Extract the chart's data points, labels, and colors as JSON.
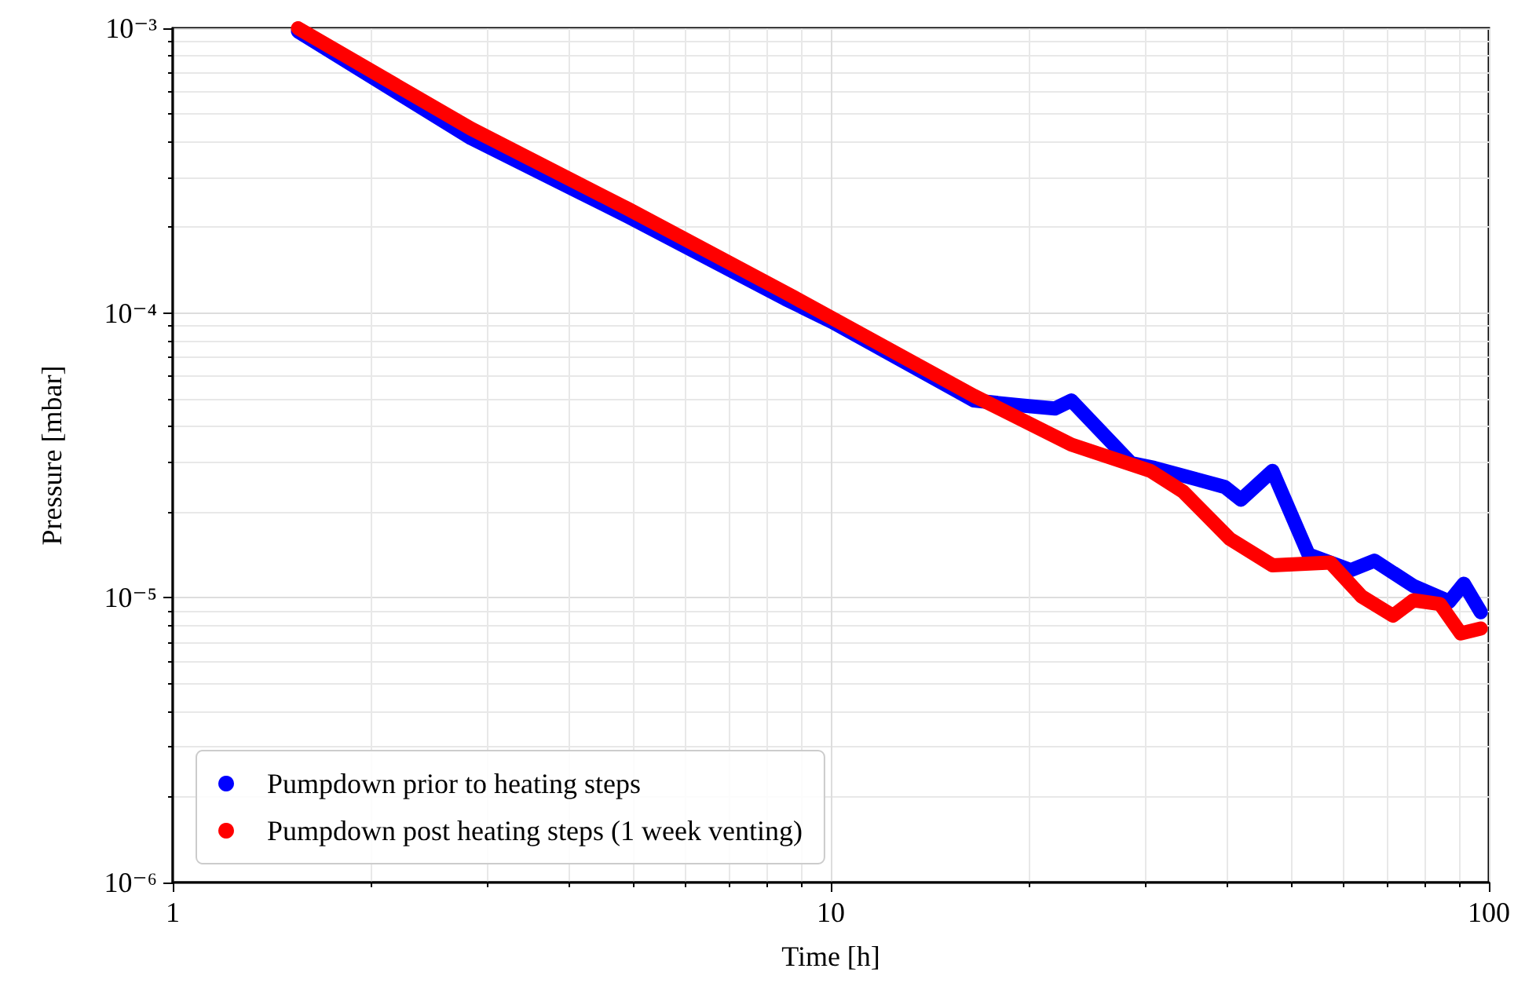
{
  "chart_data": {
    "type": "line",
    "xlabel": "Time [h]",
    "ylabel": "Pressure [mbar]",
    "series": [
      {
        "name": "Pumpdown prior to heating steps",
        "color": "#0000ff",
        "x": [
          1.55,
          2.84,
          4.92,
          8.53,
          10.05,
          16.5,
          19.4,
          21.9,
          23.2,
          28.6,
          31.0,
          39.7,
          42.0,
          46.9,
          53.2,
          61.7,
          67.0,
          76.8,
          87.1,
          91.6,
          97.2
        ],
        "values": [
          0.000975,
          0.000411,
          0.000218,
          0.000112,
          9.3e-05,
          4.93e-05,
          4.74e-05,
          4.62e-05,
          4.93e-05,
          2.97e-05,
          2.86e-05,
          2.45e-05,
          2.21e-05,
          2.79e-05,
          1.42e-05,
          1.25e-05,
          1.35e-05,
          1.1e-05,
          9.7e-06,
          1.12e-05,
          8.9e-06
        ]
      },
      {
        "name": "Pumpdown post heating steps (1 week venting)",
        "color": "#ff0000",
        "x": [
          1.55,
          2.84,
          4.92,
          8.53,
          16.5,
          23.2,
          30.6,
          34.3,
          40.4,
          46.9,
          57.4,
          64.1,
          71.5,
          76.8,
          84.3,
          90.6,
          97.2
        ],
        "values": [
          0.001,
          0.000444,
          0.000232,
          0.000118,
          5.12e-05,
          3.45e-05,
          2.79e-05,
          2.36e-05,
          1.61e-05,
          1.3e-05,
          1.33e-05,
          1.01e-05,
          8.65e-06,
          9.8e-06,
          9.5e-06,
          7.5e-06,
          7.8e-06
        ]
      }
    ],
    "xlim": [
      1,
      100
    ],
    "xticks": [
      1,
      10,
      100
    ],
    "ylim": [
      1e-06,
      0.001
    ],
    "yticks": [
      {
        "value": 1e-06,
        "label": "10⁻⁶"
      },
      {
        "value": 1e-05,
        "label": "10⁻⁵"
      },
      {
        "value": 0.0001,
        "label": "10⁻⁴"
      },
      {
        "value": 0.001,
        "label": "10⁻³"
      }
    ],
    "log": "xy",
    "grid": true,
    "legend": "bottom left",
    "marker": "none",
    "line_style": "solid"
  }
}
